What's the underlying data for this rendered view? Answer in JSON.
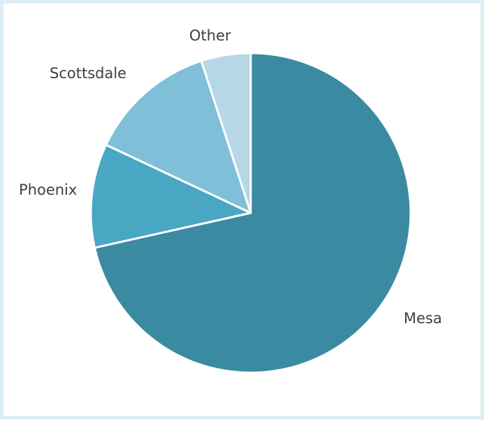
{
  "chart_data": {
    "type": "pie",
    "title": "",
    "start_angle_deg": 0,
    "direction": "clockwise",
    "slices": [
      {
        "label": "Mesa",
        "value": 71.5,
        "color": "#3a8ba2"
      },
      {
        "label": "Phoenix",
        "value": 10.5,
        "color": "#49a7c3"
      },
      {
        "label": "Scottsdale",
        "value": 13.0,
        "color": "#7fbfd7"
      },
      {
        "label": "Other",
        "value": 5.0,
        "color": "#b6d7e6"
      }
    ],
    "legend": "none",
    "slice_border_color": "#ffffff"
  }
}
